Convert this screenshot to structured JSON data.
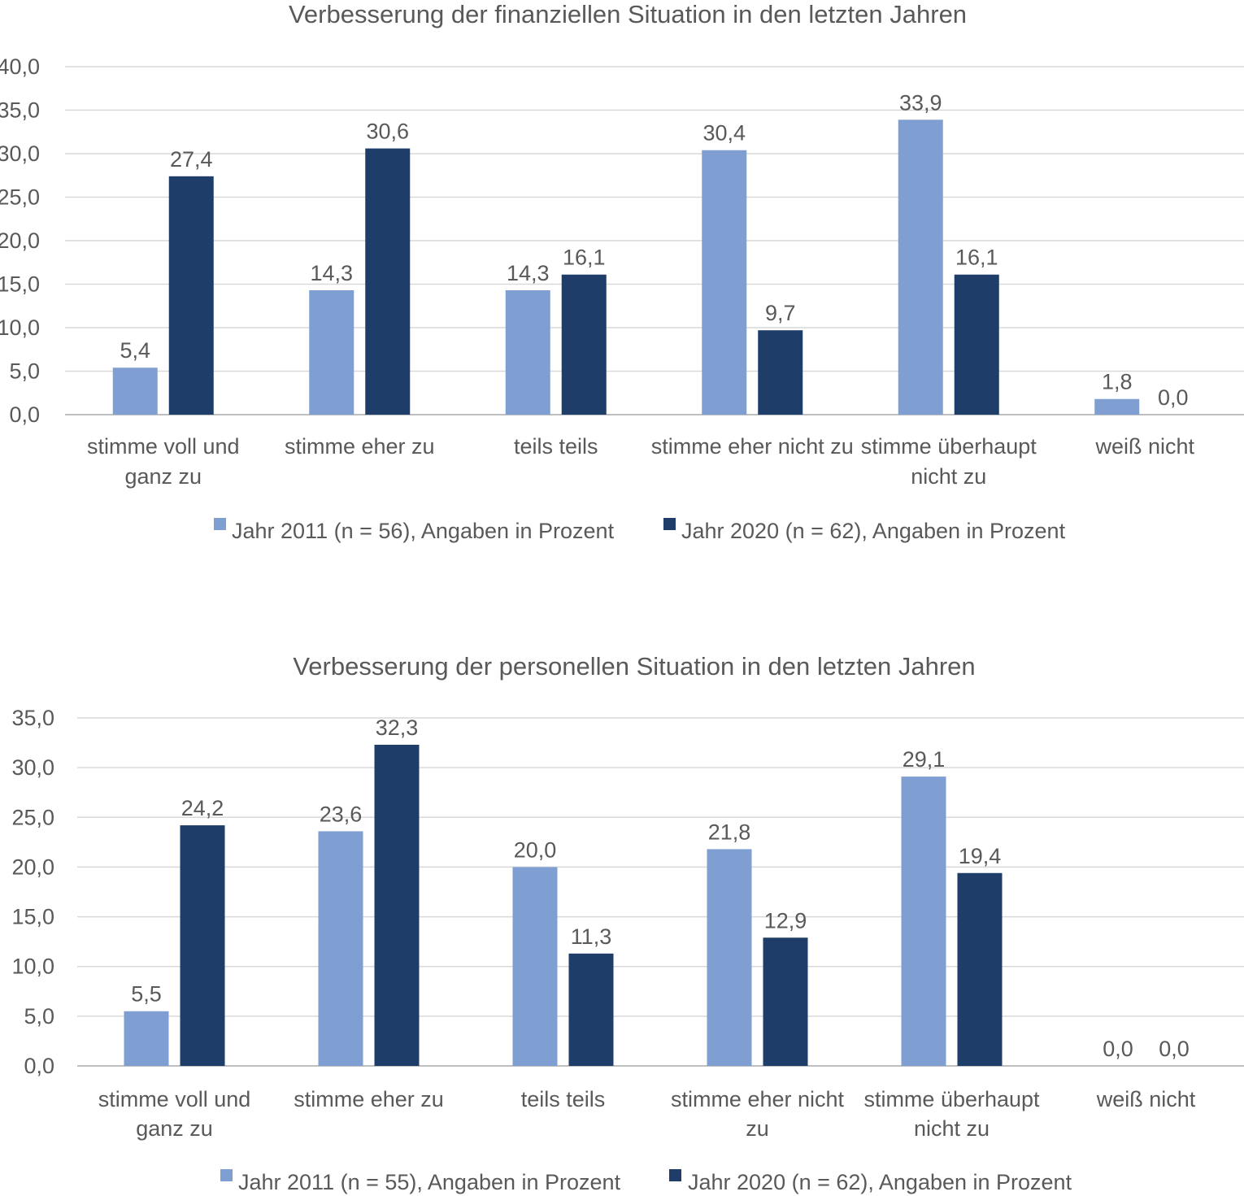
{
  "chart_data": [
    {
      "type": "bar",
      "title": "Verbesserung der finanziellen Situation in den letzten Jahren",
      "categories": [
        [
          "stimme voll und",
          "ganz zu"
        ],
        [
          "stimme eher zu"
        ],
        [
          "teils teils"
        ],
        [
          "stimme eher nicht zu"
        ],
        [
          "stimme überhaupt",
          "nicht zu"
        ],
        [
          "weiß nicht"
        ]
      ],
      "series": [
        {
          "name": "Jahr 2011 (n = 56), Angaben in Prozent",
          "color": "#7f9fd2",
          "values": [
            5.4,
            14.3,
            14.3,
            30.4,
            33.9,
            1.8
          ],
          "labels": [
            "5,4",
            "14,3",
            "14,3",
            "30,4",
            "33,9",
            "1,8"
          ]
        },
        {
          "name": "Jahr 2020 (n = 62), Angaben in Prozent",
          "color": "#1f3d69",
          "values": [
            27.4,
            30.6,
            16.1,
            9.7,
            16.1,
            0.0
          ],
          "labels": [
            "27,4",
            "30,6",
            "16,1",
            "9,7",
            "16,1",
            "0,0"
          ]
        }
      ],
      "ylim": [
        0,
        40
      ],
      "yticks": [
        0,
        5,
        10,
        15,
        20,
        25,
        30,
        35,
        40
      ],
      "ytick_labels": [
        "0,0",
        "5,0",
        "10,0",
        "15,0",
        "20,0",
        "25,0",
        "30,0",
        "35,0",
        "40,0"
      ],
      "grid": true,
      "legend": "bottom"
    },
    {
      "type": "bar",
      "title": "Verbesserung der personellen Situation in den letzten Jahren",
      "categories": [
        [
          "stimme voll und",
          "ganz zu"
        ],
        [
          "stimme eher zu"
        ],
        [
          "teils teils"
        ],
        [
          "stimme eher nicht",
          "zu"
        ],
        [
          "stimme überhaupt",
          "nicht zu"
        ],
        [
          "weiß nicht"
        ]
      ],
      "series": [
        {
          "name": "Jahr 2011 (n = 55), Angaben in Prozent",
          "color": "#7f9fd2",
          "values": [
            5.5,
            23.6,
            20.0,
            21.8,
            29.1,
            0.0
          ],
          "labels": [
            "5,5",
            "23,6",
            "20,0",
            "21,8",
            "29,1",
            "0,0"
          ]
        },
        {
          "name": "Jahr 2020 (n = 62), Angaben in Prozent",
          "color": "#1f3d69",
          "values": [
            24.2,
            32.3,
            11.3,
            12.9,
            19.4,
            0.0
          ],
          "labels": [
            "24,2",
            "32,3",
            "11,3",
            "12,9",
            "19,4",
            "0,0"
          ]
        }
      ],
      "ylim": [
        0,
        35
      ],
      "yticks": [
        0,
        5,
        10,
        15,
        20,
        25,
        30,
        35
      ],
      "ytick_labels": [
        "0,0",
        "5,0",
        "10,0",
        "15,0",
        "20,0",
        "25,0",
        "30,0",
        "35,0"
      ],
      "grid": true,
      "legend": "bottom"
    }
  ]
}
